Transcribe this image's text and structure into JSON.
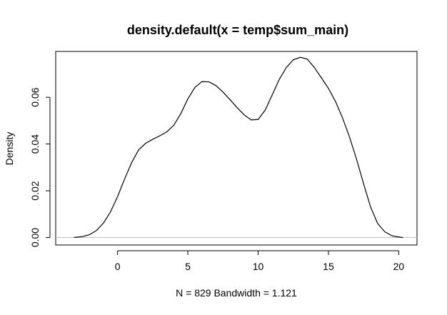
{
  "chart_data": {
    "type": "line",
    "title": "density.default(x = temp$sum_main)",
    "xlabel": "N = 829   Bandwidth = 1.121",
    "ylabel": "Density",
    "xlim": [
      -4.4,
      21.3
    ],
    "ylim": [
      -0.0032,
      0.0796
    ],
    "xticks": [
      0,
      5,
      10,
      15,
      20
    ],
    "xtick_labels": [
      "0",
      "5",
      "10",
      "15",
      "20"
    ],
    "yticks": [
      0,
      0.02,
      0.04,
      0.06
    ],
    "ytick_labels": [
      "0.00",
      "0.02",
      "0.04",
      "0.06"
    ],
    "grid": false,
    "baseline": {
      "y": 0,
      "color": "#bebebe"
    },
    "series": [
      {
        "color": "#000000",
        "x": [
          -3.1,
          -2.5,
          -2.0,
          -1.5,
          -1.0,
          -0.5,
          0.0,
          0.5,
          1.0,
          1.5,
          2.0,
          2.5,
          3.0,
          3.5,
          4.0,
          4.5,
          5.0,
          5.5,
          6.0,
          6.5,
          7.0,
          7.5,
          8.0,
          8.5,
          9.0,
          9.5,
          10.0,
          10.5,
          11.0,
          11.5,
          12.0,
          12.5,
          13.0,
          13.5,
          14.0,
          14.5,
          15.0,
          15.5,
          16.0,
          16.5,
          17.0,
          17.5,
          18.0,
          18.5,
          19.0,
          19.5,
          20.0,
          20.3
        ],
        "y": [
          0.0,
          0.0004,
          0.0012,
          0.003,
          0.0062,
          0.011,
          0.0175,
          0.025,
          0.032,
          0.0375,
          0.0403,
          0.042,
          0.0435,
          0.0452,
          0.048,
          0.053,
          0.0593,
          0.0642,
          0.0667,
          0.0666,
          0.065,
          0.0622,
          0.059,
          0.0556,
          0.0525,
          0.0503,
          0.0505,
          0.0545,
          0.061,
          0.0676,
          0.0727,
          0.076,
          0.0771,
          0.0763,
          0.0727,
          0.0683,
          0.0638,
          0.0582,
          0.0512,
          0.043,
          0.0335,
          0.023,
          0.013,
          0.006,
          0.0025,
          0.0008,
          0.0002,
          0.0
        ]
      }
    ]
  }
}
